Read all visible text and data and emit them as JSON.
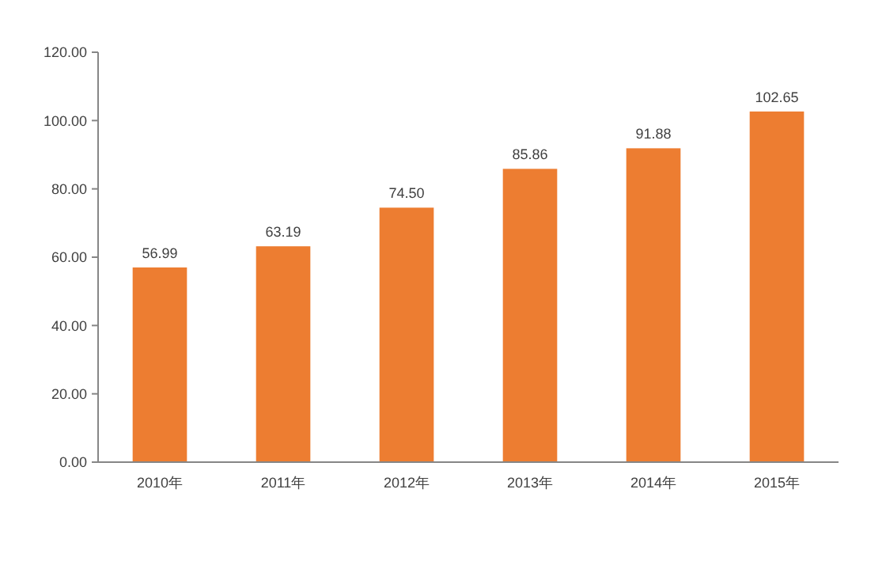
{
  "chart_data": {
    "type": "bar",
    "categories": [
      "2010年",
      "2011年",
      "2012年",
      "2013年",
      "2014年",
      "2015年"
    ],
    "values": [
      56.99,
      63.19,
      74.5,
      85.86,
      91.88,
      102.65
    ],
    "value_labels": [
      "56.99",
      "63.19",
      "74.50",
      "85.86",
      "91.88",
      "102.65"
    ],
    "color": "#ed7d31",
    "ylim": [
      0,
      120
    ],
    "yticks": [
      {
        "value": 0,
        "label": "0.00"
      },
      {
        "value": 20,
        "label": "20.00"
      },
      {
        "value": 40,
        "label": "40.00"
      },
      {
        "value": 60,
        "label": "60.00"
      },
      {
        "value": 80,
        "label": "80.00"
      },
      {
        "value": 100,
        "label": "100.00"
      },
      {
        "value": 120,
        "label": "120.00"
      }
    ],
    "grid": false
  }
}
